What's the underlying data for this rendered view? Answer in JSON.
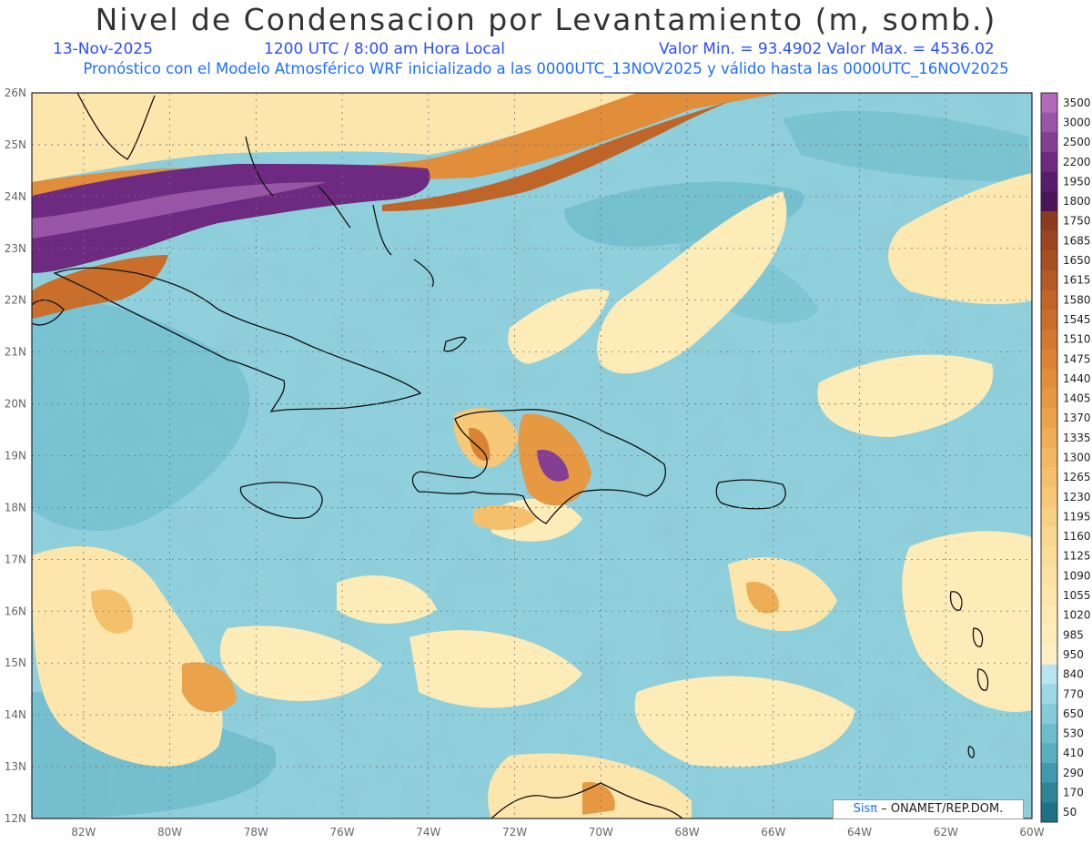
{
  "header": {
    "title": "Nivel de Condensacion por Levantamiento (m, somb.)",
    "date": "13-Nov-2025",
    "time": "1200 UTC / 8:00 am Hora Local",
    "min_max": "Valor Min. = 93.4902   Valor Max. = 4536.02",
    "forecast_note": "Pronóstico con el Modelo Atmosférico WRF inicializado a las 0000UTC_13NOV2025 y válido hasta las  0000UTC_16NOV2025"
  },
  "map": {
    "lon_labels": [
      "82W",
      "80W",
      "78W",
      "76W",
      "74W",
      "72W",
      "70W",
      "68W",
      "66W",
      "64W",
      "62W",
      "60W"
    ],
    "lat_labels": [
      "26N",
      "25N",
      "24N",
      "23N",
      "22N",
      "21N",
      "20N",
      "19N",
      "18N",
      "17N",
      "16N",
      "15N",
      "14N",
      "13N",
      "12N"
    ],
    "lon_range": [
      -83.2,
      -60
    ],
    "lat_range": [
      12,
      26
    ]
  },
  "legend": {
    "levels": [
      "3500",
      "3000",
      "2500",
      "2200",
      "1950",
      "1800",
      "1750",
      "1685",
      "1650",
      "1615",
      "1580",
      "1545",
      "1510",
      "1475",
      "1440",
      "1405",
      "1370",
      "1335",
      "1300",
      "1265",
      "1230",
      "1195",
      "1160",
      "1125",
      "1090",
      "1055",
      "1020",
      "985",
      "950",
      "840",
      "770",
      "650",
      "530",
      "410",
      "290",
      "170",
      "50"
    ],
    "colors": [
      "#b06ab8",
      "#9a55a6",
      "#843f93",
      "#6e2a80",
      "#5a1b6a",
      "#4a1657",
      "#8a3b20",
      "#9a4520",
      "#a84f22",
      "#b55a25",
      "#c06428",
      "#c96e2b",
      "#d2782f",
      "#da8334",
      "#e18d3a",
      "#e69842",
      "#eba34b",
      "#efad55",
      "#f2b761",
      "#f4c06c",
      "#f6c878",
      "#f8d083",
      "#f9d78e",
      "#fadd98",
      "#fbe2a2",
      "#fce6ab",
      "#fdeab3",
      "#fdedbb",
      "#fef0c4",
      "#b8e6ee",
      "#9dd8e4",
      "#85cbd9",
      "#6dbdcd",
      "#56aebf",
      "#4099ae",
      "#2e8599",
      "#1f6f85"
    ]
  },
  "credit": {
    "logo": "Sisπ",
    "text": "– ONAMET/REP.DOM."
  }
}
